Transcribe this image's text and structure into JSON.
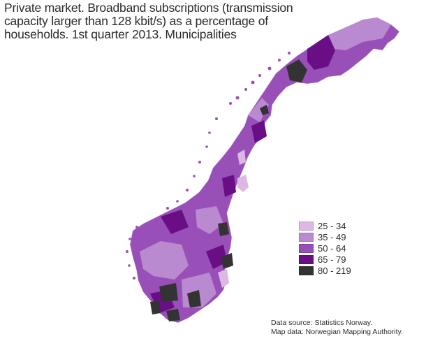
{
  "title": "Private market. Broadband subscriptions (transmission capacity larger than 128 kbit/s) as a percentage of households. 1st quarter 2013. Municipalities",
  "legend": [
    {
      "label": "25 - 34",
      "color": "#dcb8e3"
    },
    {
      "label": "35 - 49",
      "color": "#b98ad0"
    },
    {
      "label": "50 - 64",
      "color": "#9850b8"
    },
    {
      "label": "65 - 79",
      "color": "#6a0e86"
    },
    {
      "label": "80 - 219",
      "color": "#333333"
    }
  ],
  "source": {
    "line1": "Data source: Statistics Norway.",
    "line2": "Map data: Norwegian Mapping Authority."
  },
  "colors": {
    "background": "#ffffff",
    "border": "#f2eaf4"
  }
}
